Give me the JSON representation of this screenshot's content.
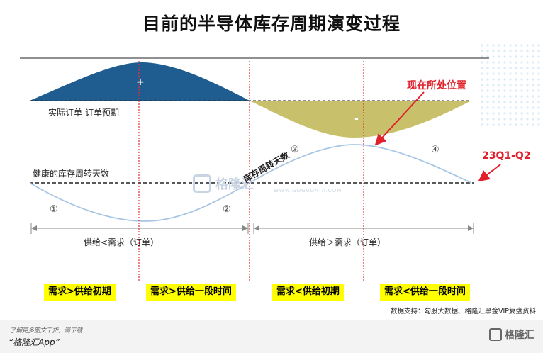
{
  "title": "目前的半导体库存周期演变过程",
  "labels": {
    "actual_orders": "实际订单-订单预期",
    "healthy_inventory": "健康的库存周转天数",
    "inventory_days": "库存周转天数",
    "plus": "+",
    "minus": "-",
    "current_position": "现在所处位置",
    "period": "23Q1-Q2",
    "circle_1": "①",
    "circle_2": "②",
    "circle_3": "③",
    "circle_4": "④",
    "supply_lt_demand": "供给<需求（订单）",
    "supply_gt_demand": "供给＞需求（订单）"
  },
  "phases": [
    "需求>供给初期",
    "需求>供给一段时间",
    "需求<供给初期",
    "需求<供给一段时间"
  ],
  "source": "数据支持：勾股大数据、格隆汇黑金VIP复盘资料",
  "footer": {
    "line1": "了解更多图文干货，请下载",
    "line2": "“格隆汇App”",
    "logo": "格隆汇"
  },
  "watermark": {
    "name": "格隆汇",
    "url": "WWW.GOGUDATA.COM"
  },
  "colors": {
    "positive_area": "#1f5c8f",
    "negative_area": "#c8c06a",
    "curve": "#a8c6e4",
    "divider": "#e0303a",
    "arrow": "#e0202a",
    "phase_bg": "#ffff00"
  }
}
